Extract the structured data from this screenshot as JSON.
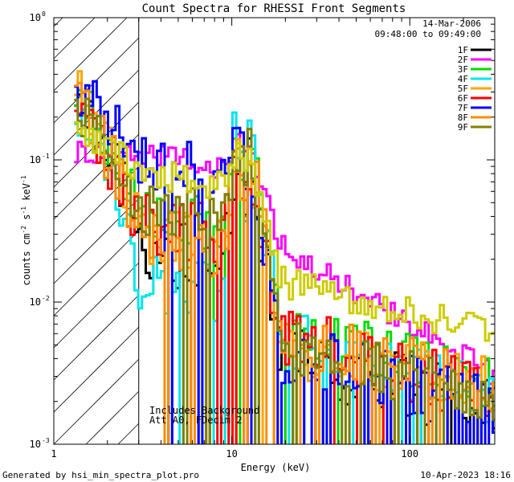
{
  "chart_data": {
    "type": "line",
    "title": "Count Spectra for RHESSI Front Segments",
    "xlabel": "Energy (keV)",
    "ylabel": "counts cm-2 s-1 keV-1",
    "xscale": "log",
    "yscale": "log",
    "xlim": [
      1,
      300
    ],
    "ylim": [
      0.001,
      1
    ],
    "x_tick_labels": [
      {
        "value": 1,
        "label": "1"
      },
      {
        "value": 10,
        "label": "10"
      },
      {
        "value": 100,
        "label": "100"
      }
    ],
    "y_tick_labels": [
      {
        "value": 1,
        "base": "10",
        "exp": "0"
      },
      {
        "value": 0.1,
        "base": "10",
        "exp": "-1"
      },
      {
        "value": 0.01,
        "base": "10",
        "exp": "-2"
      },
      {
        "value": 0.001,
        "base": "10",
        "exp": "-3"
      }
    ],
    "hatched_region": [
      1,
      3
    ],
    "legend_header": [
      "14-Mar-2006",
      "09:48:00 to 09:49:00"
    ],
    "annotations": [
      "Includes Background",
      "Att A0, FDecim 2"
    ],
    "series": [
      {
        "name": "1F",
        "color": "#000000",
        "y_start": 0.38,
        "knee": 0.022,
        "peak": 0.1,
        "tail": 0.004,
        "end": 0.0018,
        "noise": 0.55,
        "drop": 0.003,
        "seed": 11
      },
      {
        "name": "2F",
        "color": "#ff00ff",
        "y_start": 0.11,
        "knee": 0.11,
        "peak": 0.13,
        "tail": 0.025,
        "end": 0.003,
        "noise": 0.2,
        "drop": 0.0,
        "seed": 22
      },
      {
        "name": "3F",
        "color": "#00dd00",
        "y_start": 0.3,
        "knee": 0.04,
        "peak": 0.14,
        "tail": 0.007,
        "end": 0.0025,
        "noise": 0.45,
        "drop": 0.002,
        "seed": 33
      },
      {
        "name": "4F",
        "color": "#00e5ee",
        "y_start": 0.21,
        "knee": 0.014,
        "peak": 0.16,
        "tail": 0.006,
        "end": 0.0022,
        "noise": 0.5,
        "drop": 0.004,
        "seed": 44
      },
      {
        "name": "5F",
        "color": "#ffa500",
        "y_start": 0.31,
        "knee": 0.03,
        "peak": 0.12,
        "tail": 0.005,
        "end": 0.0025,
        "noise": 0.5,
        "drop": 0.002,
        "seed": 55
      },
      {
        "name": "6F",
        "color": "#ff0000",
        "y_start": 0.22,
        "knee": 0.035,
        "peak": 0.11,
        "tail": 0.006,
        "end": 0.0022,
        "noise": 0.5,
        "drop": 0.002,
        "seed": 66
      },
      {
        "name": "7F",
        "color": "#0000ff",
        "y_start": 0.3,
        "knee": 0.09,
        "peak": 0.12,
        "tail": 0.0045,
        "end": 0.0018,
        "noise": 0.5,
        "drop": 0.004,
        "seed": 77
      },
      {
        "name": "8F",
        "color": "#ff8c00",
        "y_start": 0.28,
        "knee": 0.028,
        "peak": 0.13,
        "tail": 0.006,
        "end": 0.0025,
        "noise": 0.5,
        "drop": 0.002,
        "seed": 88
      },
      {
        "name": "9F",
        "color": "#808000",
        "y_start": 0.21,
        "knee": 0.045,
        "peak": 0.13,
        "tail": 0.005,
        "end": 0.0022,
        "noise": 0.45,
        "drop": 0.002,
        "seed": 99
      },
      {
        "name": "",
        "color": "#cccc00",
        "y_start": 0.16,
        "knee": 0.08,
        "peak": 0.11,
        "tail": 0.014,
        "end": 0.006,
        "noise": 0.25,
        "drop": 0.0,
        "seed": 101
      }
    ]
  },
  "footer": {
    "left": "Generated by hsi_min_spectra_plot.pro",
    "right": "10-Apr-2023 18:16"
  }
}
